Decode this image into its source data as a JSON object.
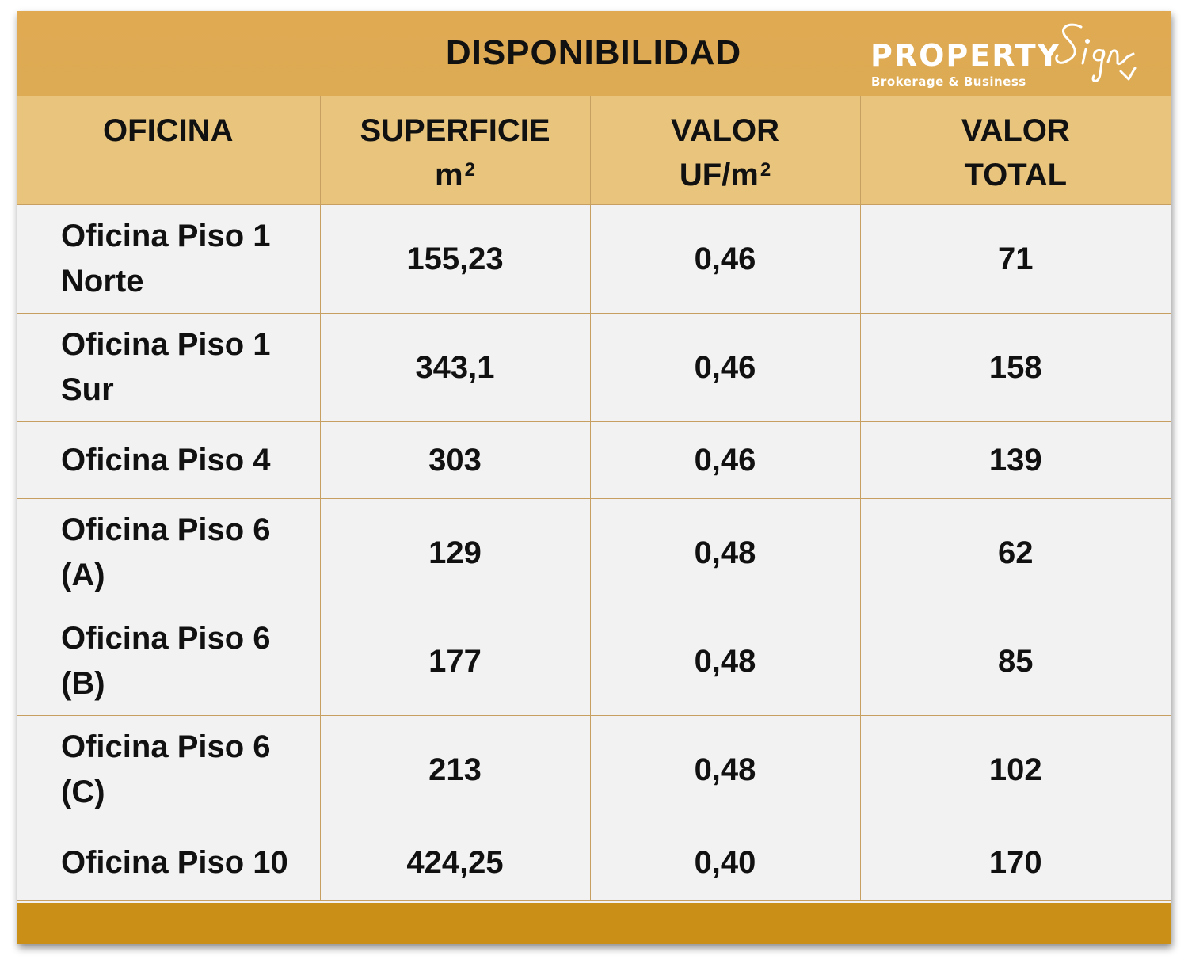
{
  "title": "DISPONIBILIDAD",
  "logo": {
    "word": "PROPERTY",
    "script": "Sign",
    "tagline": "Brokerage & Business"
  },
  "columns": [
    {
      "line1": "OFICINA",
      "line2": ""
    },
    {
      "line1": "SUPERFICIE",
      "line2": "m",
      "sup": "2"
    },
    {
      "line1": "VALOR",
      "line2": "UF/m",
      "sup": "2"
    },
    {
      "line1": "VALOR",
      "line2": "TOTAL"
    }
  ],
  "rows": [
    {
      "name1": "Oficina Piso 1",
      "name2": "Norte",
      "superficie": "155,23",
      "valor_uf_m2": "0,46",
      "valor_total": "71"
    },
    {
      "name1": "Oficina Piso 1",
      "name2": "Sur",
      "superficie": "343,1",
      "valor_uf_m2": "0,46",
      "valor_total": "158"
    },
    {
      "name1": "Oficina Piso 4",
      "name2": "",
      "superficie": "303",
      "valor_uf_m2": "0,46",
      "valor_total": "139"
    },
    {
      "name1": "Oficina Piso 6",
      "name2": "(A)",
      "superficie": "129",
      "valor_uf_m2": "0,48",
      "valor_total": "62"
    },
    {
      "name1": "Oficina Piso 6",
      "name2": "(B)",
      "superficie": "177",
      "valor_uf_m2": "0,48",
      "valor_total": "85"
    },
    {
      "name1": "Oficina Piso 6",
      "name2": "(C)",
      "superficie": "213",
      "valor_uf_m2": "0,48",
      "valor_total": "102"
    },
    {
      "name1": "Oficina Piso 10",
      "name2": "",
      "superficie": "424,25",
      "valor_uf_m2": "0,40",
      "valor_total": "170"
    }
  ],
  "colors": {
    "title_bar": "#dcab54",
    "header_row": "#e8c47c",
    "body_cells": "#f2f2f2",
    "grid_lines": "#c7a061",
    "footer_bar": "#c98f17",
    "logo_text": "#ffffff"
  }
}
